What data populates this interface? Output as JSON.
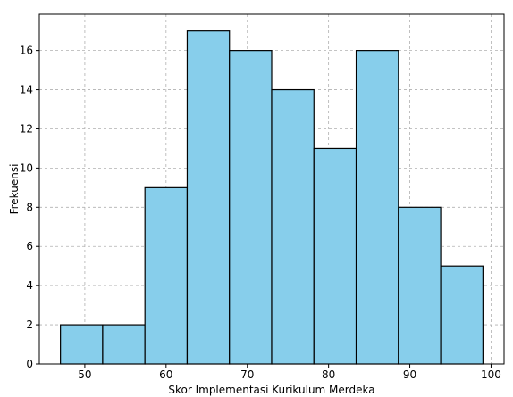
{
  "chart_data": {
    "type": "bar",
    "subtype": "histogram",
    "title": "",
    "xlabel": "Skor Implementasi Kurikulum Merdeka",
    "ylabel": "Frekuensi",
    "bins": [
      {
        "start": 47.0,
        "end": 52.2,
        "count": 2
      },
      {
        "start": 52.2,
        "end": 57.4,
        "count": 2
      },
      {
        "start": 57.4,
        "end": 62.6,
        "count": 9
      },
      {
        "start": 62.6,
        "end": 67.8,
        "count": 17
      },
      {
        "start": 67.8,
        "end": 73.0,
        "count": 16
      },
      {
        "start": 73.0,
        "end": 78.2,
        "count": 14
      },
      {
        "start": 78.2,
        "end": 83.4,
        "count": 11
      },
      {
        "start": 83.4,
        "end": 88.6,
        "count": 16
      },
      {
        "start": 88.6,
        "end": 93.8,
        "count": 8
      },
      {
        "start": 93.8,
        "end": 99.0,
        "count": 5
      }
    ],
    "xlim": [
      44.4,
      101.6
    ],
    "ylim": [
      0,
      17.85
    ],
    "xticks": [
      50,
      60,
      70,
      80,
      90,
      100
    ],
    "yticks": [
      0,
      2,
      4,
      6,
      8,
      10,
      12,
      14,
      16
    ],
    "grid": true,
    "bar_color": "#87CEEB",
    "edge_color": "#000000"
  }
}
